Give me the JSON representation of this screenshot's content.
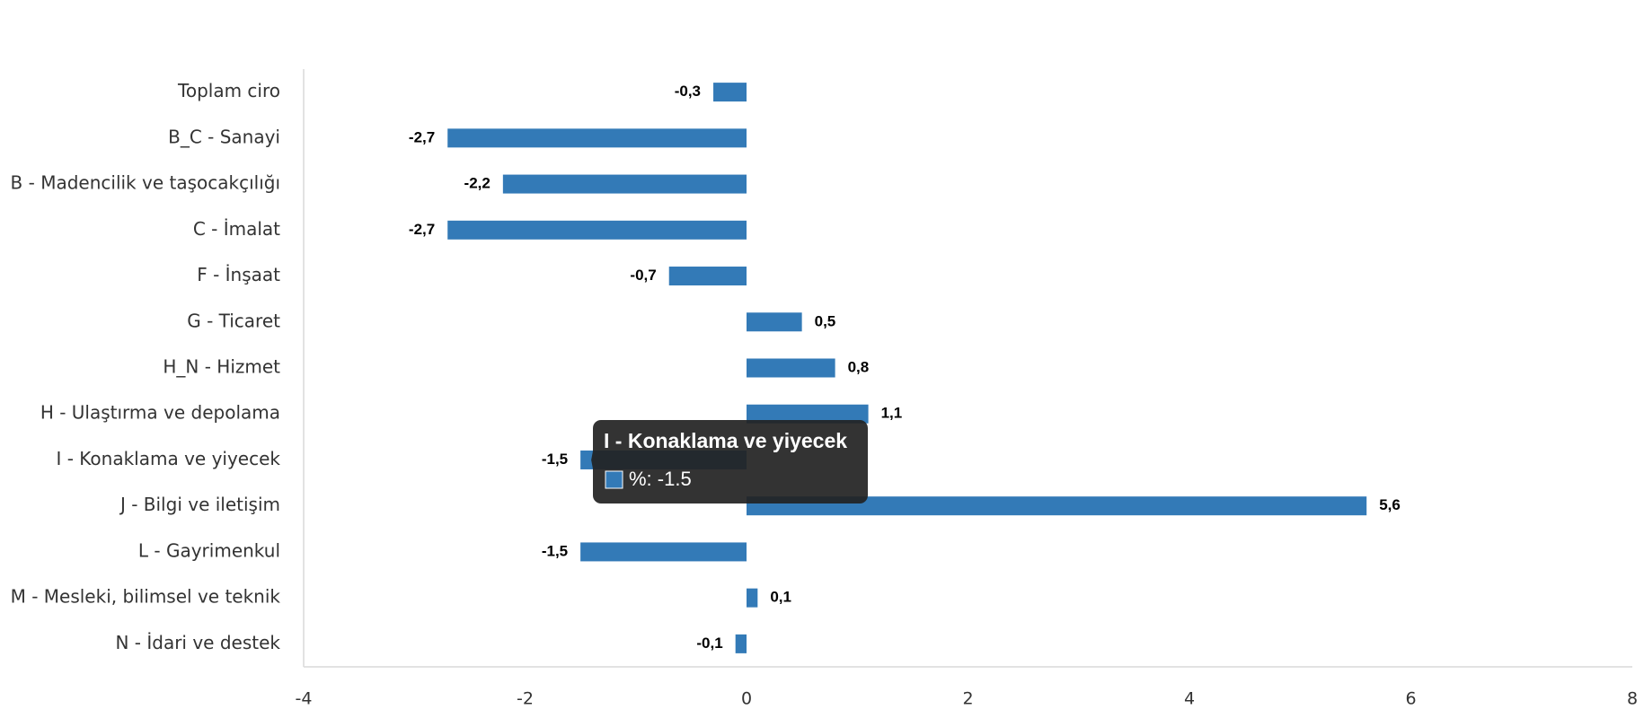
{
  "chart_data": {
    "type": "hbar",
    "categories": [
      "Toplam ciro",
      "B_C - Sanayi",
      "B - Madencilik ve taşocakçılığı",
      "C - İmalat",
      "F - İnşaat",
      "G - Ticaret",
      "H_N - Hizmet",
      "H - Ulaştırma ve depolama",
      "I - Konaklama ve yiyecek",
      "J - Bilgi ve iletişim",
      "L - Gayrimenkul",
      "M - Mesleki, bilimsel ve teknik",
      "N - İdari ve destek"
    ],
    "series": [
      {
        "name": "%",
        "color": "#337ab7",
        "values": [
          -0.3,
          -2.7,
          -2.2,
          -2.7,
          -0.7,
          0.5,
          0.8,
          1.1,
          -1.5,
          5.6,
          -1.5,
          0.1,
          -0.1
        ],
        "value_labels": [
          "-0,3",
          "-2,7",
          "-2,2",
          "-2,7",
          "-0,7",
          "0,5",
          "0,8",
          "1,1",
          "-1,5",
          "5,6",
          "-1,5",
          "0,1",
          "-0,1"
        ]
      }
    ],
    "xlim": [
      -4,
      8
    ],
    "xticks": [
      -4,
      -2,
      0,
      2,
      4,
      6,
      8
    ],
    "tooltip": {
      "index": 8,
      "title": "I - Konaklama ve yiyecek",
      "text": "%: -1.5"
    }
  }
}
